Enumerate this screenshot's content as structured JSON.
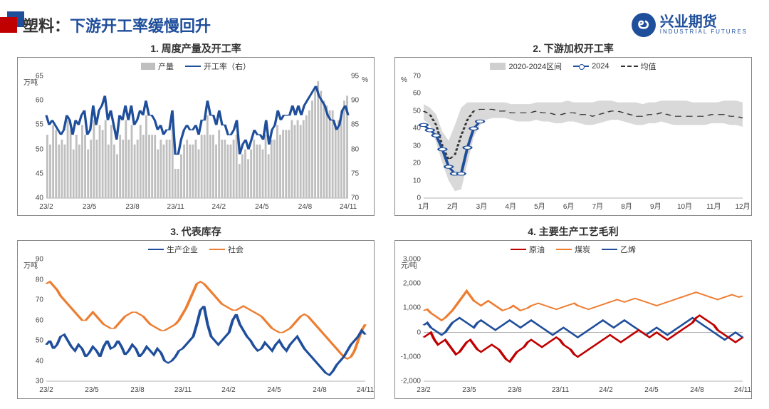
{
  "header": {
    "title_a": "塑料：",
    "title_b": "下游开工率缓慢回升",
    "logo_cn": "兴业期货",
    "logo_en": "INDUSTRIAL FUTURES",
    "logo_glyph": "ల"
  },
  "colors": {
    "blue": "#1f4e9b",
    "orange": "#ed7d31",
    "red": "#c00000",
    "gray_bar": "#bfbfbf",
    "band": "#cfcfcf",
    "axis": "#666666"
  },
  "chart1": {
    "title": "1. 周度产量及开工率",
    "legend": {
      "bar": "产量",
      "line": "开工率（右）"
    },
    "unitL": "万吨",
    "unitR": "%",
    "yL": {
      "min": 40,
      "max": 65,
      "ticks": [
        40,
        45,
        50,
        55,
        60,
        65
      ]
    },
    "yR": {
      "min": 70,
      "max": 95,
      "ticks": [
        70,
        75,
        80,
        85,
        90,
        95
      ]
    },
    "xlabels": [
      "23/2",
      "23/5",
      "23/8",
      "23/11",
      "24/2",
      "24/5",
      "24/8",
      "24/11"
    ],
    "bars": [
      53,
      51,
      55,
      54,
      51,
      52,
      51,
      56,
      54,
      50,
      53,
      51,
      55,
      53,
      50,
      52,
      56,
      52,
      55,
      54,
      56,
      51,
      55,
      51,
      49,
      53,
      52,
      56,
      52,
      55,
      51,
      52,
      55,
      53,
      57,
      53,
      53,
      53,
      50,
      52,
      51,
      52,
      52,
      55,
      46,
      46,
      49,
      51,
      52,
      51,
      51,
      52,
      50,
      53,
      53,
      57,
      53,
      53,
      51,
      54,
      52,
      52,
      51,
      51,
      52,
      53,
      47,
      49,
      50,
      48,
      50,
      52,
      51,
      51,
      50,
      53,
      49,
      52,
      52,
      55,
      53,
      54,
      54,
      54,
      56,
      55,
      56,
      55,
      56,
      57,
      58,
      60,
      63,
      64,
      62,
      60,
      59,
      58,
      58,
      55,
      56,
      58,
      60,
      61
    ],
    "line": [
      87,
      85,
      86,
      85,
      84,
      83,
      84,
      87,
      86,
      83,
      86,
      85,
      87,
      88,
      83,
      84,
      89,
      85,
      88,
      89,
      91,
      86,
      88,
      85,
      82,
      87,
      86,
      89,
      86,
      89,
      85,
      86,
      88,
      87,
      90,
      87,
      87,
      86,
      84,
      85,
      83,
      84,
      84,
      88,
      79,
      79,
      82,
      84,
      85,
      84,
      84,
      85,
      83,
      86,
      86,
      90,
      87,
      87,
      85,
      88,
      85,
      85,
      83,
      83,
      84,
      86,
      79,
      81,
      82,
      80,
      82,
      84,
      83,
      83,
      82,
      86,
      81,
      84,
      85,
      88,
      86,
      87,
      87,
      87,
      89,
      87,
      89,
      87,
      89,
      90,
      91,
      92,
      93,
      91,
      90,
      89,
      87,
      86,
      86,
      84,
      85,
      88,
      89,
      87
    ]
  },
  "chart2": {
    "title": "2. 下游加权开工率",
    "legend": {
      "band": "2020-2024区间",
      "line": "2024",
      "dash": "均值"
    },
    "unitL": "%",
    "yL": {
      "min": 0,
      "max": 70,
      "ticks": [
        0,
        10,
        20,
        30,
        40,
        50,
        60,
        70
      ]
    },
    "xlabels": [
      "1月",
      "2月",
      "3月",
      "4月",
      "5月",
      "6月",
      "7月",
      "8月",
      "9月",
      "10月",
      "11月",
      "12月"
    ],
    "band_hi": [
      54,
      52,
      48,
      38,
      33,
      42,
      52,
      55,
      55,
      55,
      55,
      55,
      55,
      55,
      54,
      54,
      54,
      54,
      55,
      55,
      55,
      55,
      55,
      56,
      55,
      55,
      55,
      55,
      56,
      56,
      56,
      55,
      55,
      55,
      55,
      54,
      55,
      55,
      56,
      56,
      56,
      56,
      56,
      55,
      55,
      55,
      55,
      55,
      56,
      56,
      56,
      55
    ],
    "band_lo": [
      45,
      42,
      32,
      20,
      10,
      4,
      5,
      20,
      35,
      42,
      45,
      46,
      46,
      46,
      45,
      44,
      44,
      44,
      45,
      44,
      44,
      43,
      43,
      44,
      44,
      43,
      42,
      42,
      43,
      44,
      45,
      45,
      44,
      43,
      42,
      42,
      43,
      43,
      44,
      43,
      42,
      42,
      42,
      42,
      42,
      42,
      43,
      43,
      43,
      42,
      42,
      41
    ],
    "mean": [
      50,
      48,
      42,
      30,
      22,
      25,
      36,
      45,
      50,
      51,
      51,
      51,
      50,
      50,
      49,
      49,
      49,
      49,
      50,
      49,
      49,
      48,
      48,
      49,
      49,
      48,
      48,
      47,
      48,
      49,
      50,
      50,
      49,
      48,
      47,
      47,
      48,
      48,
      49,
      48,
      47,
      47,
      47,
      47,
      47,
      47,
      48,
      48,
      48,
      47,
      47,
      46
    ],
    "line2024": [
      42,
      39,
      36,
      28,
      18,
      14,
      14,
      29,
      40,
      44
    ]
  },
  "chart3": {
    "title": "3. 代表库存",
    "legend": {
      "a": "生产企业",
      "b": "社会"
    },
    "unitL": "万吨",
    "yL": {
      "min": 30,
      "max": 90,
      "ticks": [
        30,
        40,
        50,
        60,
        70,
        80,
        90
      ]
    },
    "xlabels": [
      "23/2",
      "23/5",
      "23/8",
      "23/11",
      "24/2",
      "24/5",
      "24/8",
      "24/11"
    ],
    "a": [
      48,
      50,
      46,
      48,
      52,
      53,
      50,
      47,
      45,
      48,
      46,
      42,
      44,
      47,
      45,
      42,
      47,
      50,
      46,
      47,
      50,
      47,
      43,
      45,
      48,
      46,
      42,
      44,
      47,
      45,
      43,
      46,
      44,
      40,
      39,
      40,
      42,
      45,
      46,
      48,
      50,
      52,
      58,
      65,
      67,
      58,
      52,
      50,
      48,
      50,
      52,
      54,
      60,
      63,
      58,
      55,
      52,
      50,
      47,
      45,
      46,
      49,
      47,
      45,
      48,
      50,
      47,
      45,
      48,
      50,
      52,
      49,
      46,
      44,
      42,
      40,
      38,
      36,
      34,
      33,
      35,
      38,
      40,
      42,
      45,
      48,
      50,
      52,
      55,
      53
    ],
    "b": [
      78,
      79,
      77,
      75,
      72,
      70,
      68,
      66,
      64,
      62,
      60,
      60,
      62,
      64,
      62,
      60,
      58,
      57,
      56,
      56,
      58,
      60,
      62,
      63,
      64,
      64,
      63,
      62,
      60,
      58,
      57,
      56,
      55,
      55,
      56,
      57,
      58,
      60,
      63,
      66,
      70,
      74,
      78,
      79,
      78,
      76,
      74,
      72,
      70,
      68,
      67,
      66,
      65,
      65,
      66,
      67,
      66,
      65,
      64,
      63,
      62,
      60,
      58,
      56,
      55,
      54,
      54,
      55,
      56,
      58,
      60,
      62,
      63,
      62,
      60,
      58,
      56,
      54,
      52,
      50,
      48,
      46,
      44,
      42,
      41,
      42,
      45,
      50,
      55,
      58
    ]
  },
  "chart4": {
    "title": "4. 主要生产工艺毛利",
    "legend": {
      "a": "原油",
      "b": "煤炭",
      "c": "乙烯"
    },
    "unitL": "元/吨",
    "yL": {
      "min": -2000,
      "max": 3000,
      "ticks": [
        -2000,
        -1000,
        0,
        1000,
        2000,
        3000
      ]
    },
    "xlabels": [
      "23/2",
      "23/5",
      "23/8",
      "23/11",
      "24/2",
      "24/5",
      "24/8",
      "24/11"
    ],
    "a": [
      -200,
      -100,
      0,
      -300,
      -500,
      -400,
      -300,
      -500,
      -700,
      -900,
      -800,
      -600,
      -400,
      -300,
      -500,
      -700,
      -800,
      -700,
      -600,
      -500,
      -600,
      -700,
      -900,
      -1100,
      -1200,
      -1000,
      -800,
      -700,
      -600,
      -400,
      -300,
      -400,
      -500,
      -600,
      -500,
      -400,
      -300,
      -200,
      -300,
      -500,
      -600,
      -700,
      -900,
      -1000,
      -900,
      -800,
      -700,
      -600,
      -500,
      -400,
      -300,
      -200,
      -100,
      -200,
      -300,
      -400,
      -300,
      -200,
      -100,
      0,
      100,
      0,
      -100,
      -200,
      -100,
      0,
      -100,
      -200,
      -300,
      -200,
      -100,
      0,
      100,
      200,
      300,
      400,
      600,
      700,
      600,
      500,
      400,
      300,
      100,
      0,
      -100,
      -200,
      -300,
      -400,
      -300,
      -200
    ],
    "b": [
      900,
      950,
      800,
      700,
      600,
      500,
      600,
      750,
      900,
      1100,
      1300,
      1500,
      1700,
      1500,
      1300,
      1200,
      1100,
      1200,
      1300,
      1200,
      1100,
      1000,
      900,
      950,
      1000,
      1100,
      1000,
      900,
      950,
      1000,
      1100,
      1150,
      1200,
      1150,
      1100,
      1050,
      1000,
      950,
      1000,
      1050,
      1100,
      1150,
      1200,
      1100,
      1050,
      1000,
      950,
      1000,
      1050,
      1100,
      1150,
      1200,
      1250,
      1300,
      1350,
      1300,
      1250,
      1300,
      1350,
      1400,
      1350,
      1300,
      1250,
      1200,
      1150,
      1100,
      1150,
      1200,
      1250,
      1300,
      1350,
      1400,
      1450,
      1500,
      1550,
      1600,
      1650,
      1600,
      1550,
      1500,
      1450,
      1400,
      1350,
      1400,
      1450,
      1500,
      1550,
      1500,
      1450,
      1500
    ],
    "c": [
      300,
      400,
      200,
      100,
      0,
      -100,
      0,
      200,
      400,
      500,
      600,
      500,
      400,
      300,
      200,
      400,
      500,
      400,
      300,
      200,
      100,
      200,
      300,
      400,
      500,
      400,
      300,
      200,
      300,
      400,
      500,
      400,
      300,
      200,
      100,
      0,
      -100,
      0,
      100,
      200,
      100,
      0,
      -100,
      -200,
      -100,
      0,
      100,
      200,
      300,
      400,
      500,
      400,
      300,
      200,
      300,
      400,
      500,
      400,
      300,
      200,
      100,
      0,
      -100,
      0,
      100,
      200,
      100,
      0,
      -100,
      0,
      100,
      200,
      300,
      400,
      500,
      600,
      500,
      400,
      300,
      200,
      100,
      0,
      -100,
      -200,
      -300,
      -200,
      -100,
      0,
      -100,
      -200
    ]
  }
}
